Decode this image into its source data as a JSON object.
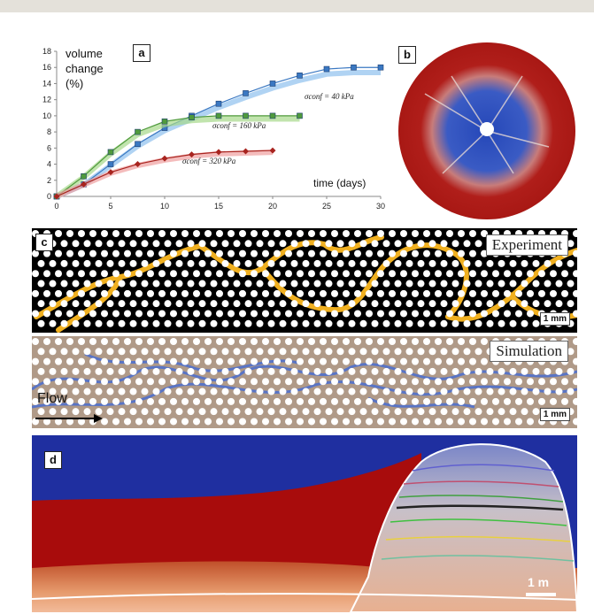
{
  "panel_a": {
    "label": "a",
    "ylabel_line1": "volume",
    "ylabel_line2": "change",
    "ylabel_line3": "(%)",
    "xlabel": "time (days)",
    "annot_40": "σconf = 40 kPa",
    "annot_160": "σconf = 160 kPa",
    "annot_320": "σconf = 320 kPa"
  },
  "panel_b": {
    "label": "b"
  },
  "panel_c": {
    "label": "c",
    "experiment_label": "Experiment",
    "simulation_label": "Simulation",
    "scale_top": "1 mm",
    "scale_bottom": "1 mm",
    "flow_label": "Flow"
  },
  "panel_d": {
    "label": "d",
    "scale": "1 m"
  },
  "colors": {
    "blue_series": "#3a78c2",
    "green_series": "#4f9a3c",
    "red_series": "#a8241f",
    "disk_red": "#b01e1a",
    "disk_blue": "#2547b8",
    "grain_tan": "#b09a88",
    "crack_yellow": "#f0b020",
    "d_blue": "#1f2fa0",
    "d_red": "#a80c0c"
  },
  "chart_data": {
    "type": "scatter",
    "x": [
      0,
      2.5,
      5,
      7.5,
      10,
      12.5,
      15,
      17.5,
      20,
      22.5,
      25,
      27.5,
      30
    ],
    "xlim": [
      0,
      30
    ],
    "ylim": [
      0,
      18
    ],
    "xticks": [
      "0",
      "5",
      "10",
      "15",
      "20",
      "25",
      "30"
    ],
    "yticks": [
      "0",
      "2",
      "4",
      "6",
      "8",
      "10",
      "12",
      "14",
      "16",
      "18"
    ],
    "xlabel": "time (days)",
    "ylabel": "volume change (%)",
    "grid": false,
    "series": [
      {
        "name": "σconf = 40 kPa",
        "x": [
          0,
          2.5,
          5,
          7.5,
          10,
          12.5,
          15,
          17.5,
          20,
          22.5,
          25,
          27.5,
          30
        ],
        "values": [
          0,
          1.5,
          4,
          6.5,
          8.5,
          10,
          11.5,
          12.8,
          14,
          15,
          15.8,
          16,
          16
        ]
      },
      {
        "name": "σconf = 160 kPa",
        "x": [
          0,
          2.5,
          5,
          7.5,
          10,
          12.5,
          15,
          17.5,
          20,
          22.5
        ],
        "values": [
          0,
          2.5,
          5.5,
          8,
          9.3,
          9.8,
          10,
          10,
          10,
          10
        ]
      },
      {
        "name": "σconf = 320 kPa",
        "x": [
          0,
          2.5,
          5,
          7.5,
          10,
          12.5,
          15,
          17.5,
          20
        ],
        "values": [
          0,
          1.5,
          3,
          4,
          4.7,
          5.2,
          5.5,
          5.6,
          5.7
        ]
      }
    ]
  }
}
